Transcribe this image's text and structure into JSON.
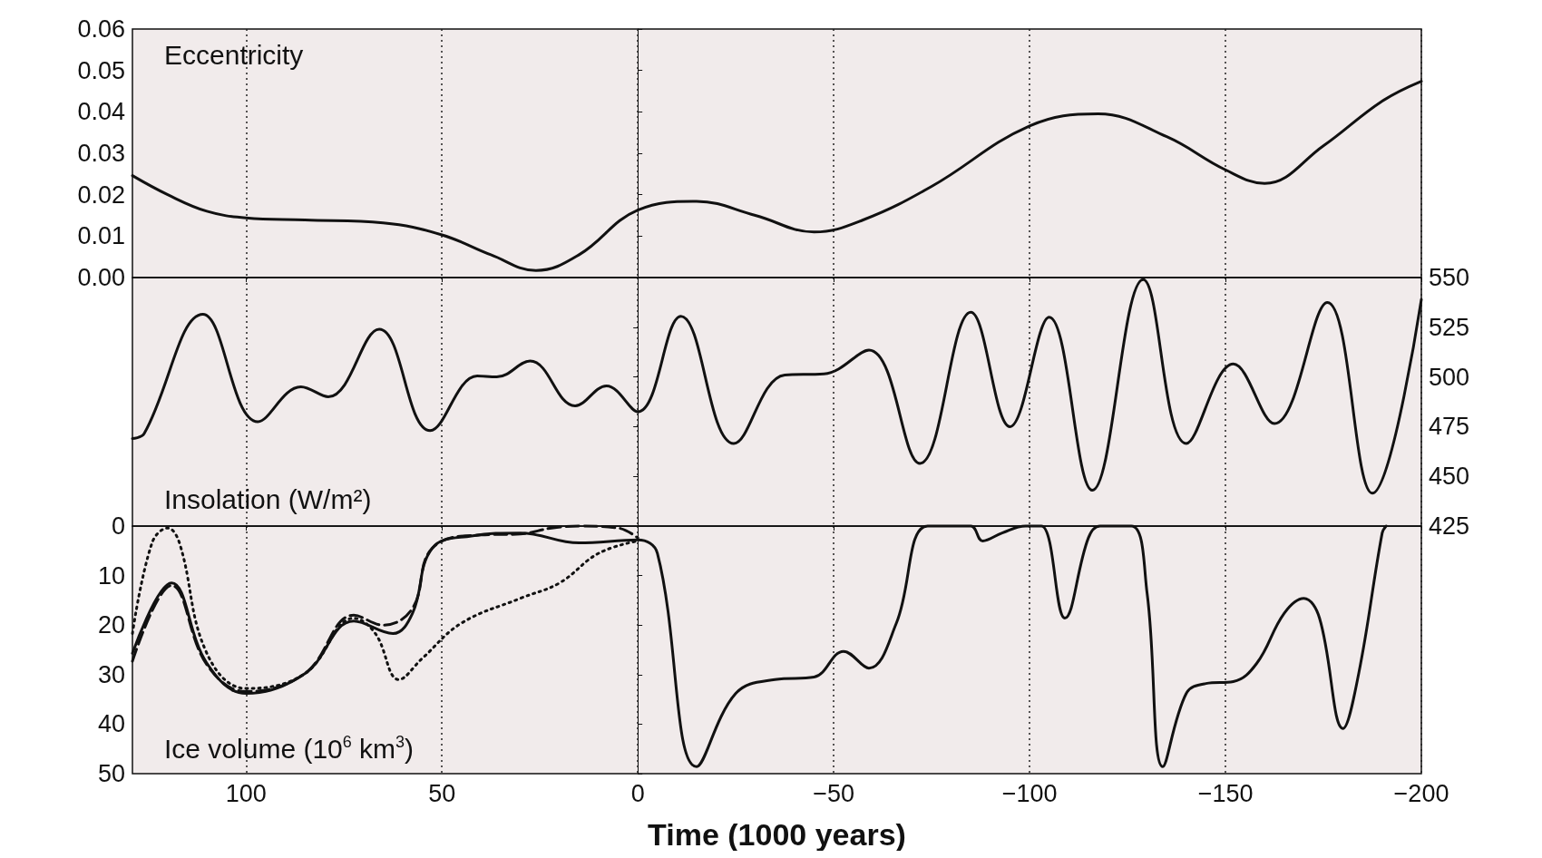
{
  "chart_data": [
    {
      "type": "line",
      "title": "Eccentricity",
      "x": [
        129,
        120,
        110,
        100,
        85,
        65,
        50,
        37.5,
        26,
        15,
        0,
        -15,
        -30,
        -45,
        -57.5,
        -75,
        -100,
        -117.5,
        -135,
        -150,
        -160,
        -175,
        -190,
        -200
      ],
      "series": [
        {
          "color": "#111111",
          "values": [
            0.0246,
            0.02,
            0.016,
            0.0144,
            0.0139,
            0.0132,
            0.0103,
            0.0055,
            0.0017,
            0.0055,
            0.0163,
            0.0184,
            0.015,
            0.011,
            0.0139,
            0.022,
            0.0366,
            0.0395,
            0.034,
            0.026,
            0.0227,
            0.0318,
            0.0426,
            0.0474
          ]
        }
      ],
      "xlim": [
        129,
        -200
      ],
      "xticks": [
        {
          "value": 100,
          "label": null
        },
        {
          "value": 50,
          "label": null
        },
        {
          "value": 0,
          "label": null
        },
        {
          "value": -50,
          "label": null
        },
        {
          "value": -100,
          "label": null
        },
        {
          "value": -150,
          "label": null
        },
        {
          "value": -200,
          "label": null
        }
      ],
      "ylim": [
        0,
        0.06
      ],
      "yticks": [
        {
          "value": 0,
          "label": "0.00"
        },
        {
          "value": 0.01,
          "label": "0.01"
        },
        {
          "value": 0.02,
          "label": "0.02"
        },
        {
          "value": 0.03,
          "label": "0.03"
        },
        {
          "value": 0.04,
          "label": "0.04"
        },
        {
          "value": 0.05,
          "label": "0.05"
        },
        {
          "value": 0.06,
          "label": "0.06"
        }
      ],
      "grid": "x",
      "tick_labels": "y"
    },
    {
      "type": "line",
      "title": "Insolation (W/m²)",
      "x": [
        129,
        126,
        111,
        97,
        86,
        79,
        66,
        53,
        41,
        36,
        27.5,
        16,
        8,
        0,
        -11,
        -24.5,
        -37.5,
        -47.5,
        -59,
        -72,
        -85,
        -95,
        -105,
        -116,
        -129,
        -140,
        -152,
        -162.5,
        -176,
        -187.5,
        -200
      ],
      "series": [
        {
          "color": "#111111",
          "axis": "y2",
          "values": [
            469,
            471.5,
            531.5,
            477.5,
            495,
            490,
            524,
            473,
            500.5,
            500,
            508,
            485.5,
            495.5,
            482.5,
            530.5,
            466.5,
            501,
            501.5,
            513.5,
            456.5,
            532.5,
            475,
            530,
            443,
            549,
            466.5,
            506.5,
            476.5,
            537.5,
            441.5,
            539
          ]
        }
      ],
      "xlim": [
        129,
        -200
      ],
      "xticks": [
        {
          "value": 100,
          "label": null
        },
        {
          "value": 50,
          "label": null
        },
        {
          "value": 0,
          "label": null
        },
        {
          "value": -50,
          "label": null
        },
        {
          "value": -100,
          "label": null
        },
        {
          "value": -150,
          "label": null
        },
        {
          "value": -200,
          "label": null
        }
      ],
      "y2lim": [
        425,
        550
      ],
      "y2ticks": [
        425,
        450,
        475,
        500,
        525,
        550
      ],
      "grid": "x",
      "tick_labels": "y"
    },
    {
      "type": "line",
      "title": "Ice volume (10$^{6}$ km$^{3}$)",
      "xlabel": "Time (1000 years)",
      "series": [
        {
          "color": "#111111",
          "line_style": "solid",
          "x": [
            129,
            119,
            110,
            100,
            85,
            72.5,
            62.5,
            57.5,
            52.5,
            42.5,
            30,
            15,
            0,
            -5,
            -15,
            -25,
            -35,
            -45,
            -52.5,
            -59,
            -66,
            -74,
            -85,
            -88,
            -93,
            -99,
            -103,
            -109,
            -115,
            -118,
            -126,
            -130,
            -134,
            -140,
            -145,
            -152,
            -158,
            -165,
            -170,
            -174,
            -180,
            -184,
            -190,
            -191
          ],
          "values": [
            25.7,
            11.5,
            27.7,
            33.8,
            29.8,
            19.2,
            21.7,
            17.6,
            4.5,
            2,
            1.4,
            3.4,
            2.8,
            5.5,
            48.6,
            33.8,
            31,
            30.5,
            25.3,
            28.7,
            19.6,
            0,
            0,
            3,
            1.4,
            0,
            0,
            18.6,
            2.4,
            0,
            0,
            13.6,
            48.6,
            33.8,
            31.8,
            31.4,
            27.7,
            17.6,
            14.6,
            18.6,
            40.9,
            29.8,
            1.4,
            0
          ]
        },
        {
          "color": "#111111",
          "line_style": "dashed",
          "x": [
            129,
            119,
            110,
            100,
            85,
            72.5,
            65,
            57.5,
            52.5,
            40,
            30,
            22,
            15,
            5,
            0
          ],
          "values": [
            27.3,
            12,
            28,
            33.4,
            29.8,
            18,
            20,
            16.6,
            4.5,
            1.8,
            1.6,
            0.4,
            0,
            0.4,
            2.4
          ]
        },
        {
          "color": "#111111",
          "line_style": "dotted",
          "x": [
            129,
            124,
            120,
            117,
            110,
            100,
            85,
            72.5,
            67,
            61,
            55,
            45,
            30,
            20,
            10,
            0
          ],
          "values": [
            21.7,
            3.4,
            0.4,
            3.4,
            25.7,
            32.8,
            29.8,
            18.6,
            21.7,
            31,
            26.7,
            19.6,
            14.6,
            11.5,
            5.5,
            3
          ]
        }
      ],
      "xlim": [
        129,
        -200
      ],
      "xticks": [
        {
          "value": 100,
          "label": "100"
        },
        {
          "value": 50,
          "label": "50"
        },
        {
          "value": 0,
          "label": "0"
        },
        {
          "value": -50,
          "label": "−50"
        },
        {
          "value": -100,
          "label": "−100"
        },
        {
          "value": -150,
          "label": "−150"
        },
        {
          "value": -200,
          "label": "−200"
        }
      ],
      "ylim": [
        50,
        0
      ],
      "yticks": [
        0,
        10,
        20,
        30,
        40,
        50
      ],
      "grid": "x"
    }
  ]
}
